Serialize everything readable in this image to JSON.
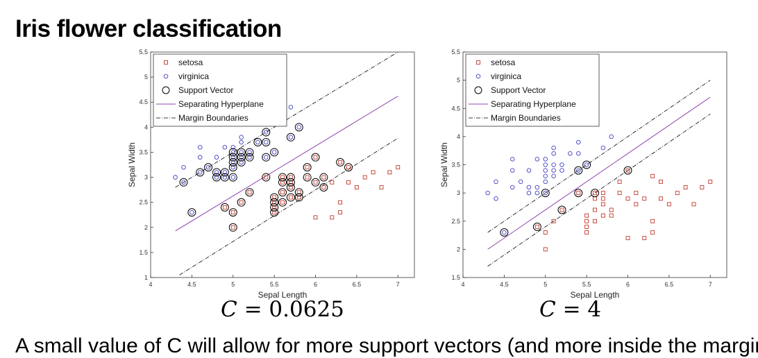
{
  "slide": {
    "title": "Iris flower classification",
    "bottom_text": "A small value of C will allow for more support vectors (and more inside the margin)"
  },
  "colors": {
    "setosa": "#c0392b",
    "virginica": "#3f3fbf",
    "hyperplane": "#8e44ad",
    "margin": "#000000",
    "support": "#000000"
  },
  "chart_data": [
    {
      "type": "scatter",
      "caption": {
        "var": "C",
        "rest": " = 0.0625"
      },
      "xlabel": "Sepal Length",
      "ylabel": "Sepal Width",
      "xlim": [
        4,
        7.2
      ],
      "ylim": [
        1,
        5.5
      ],
      "xticks": [
        4,
        4.5,
        5,
        5.5,
        6,
        6.5,
        7
      ],
      "yticks": [
        1,
        1.5,
        2,
        2.5,
        3,
        3.5,
        4,
        4.5,
        5,
        5.5
      ],
      "legend": [
        "setosa",
        "virginica",
        "Support Vector",
        "Separating Hyperplane",
        "Margin Boundaries"
      ],
      "series": [
        {
          "name": "setosa",
          "points": [
            [
              4.9,
              2.4
            ],
            [
              5,
              2
            ],
            [
              5,
              2.3
            ],
            [
              5.1,
              2.5
            ],
            [
              5.2,
              2.7
            ],
            [
              5.4,
              3
            ],
            [
              5.5,
              2.3
            ],
            [
              5.5,
              2.4
            ],
            [
              5.5,
              2.5
            ],
            [
              5.5,
              2.6
            ],
            [
              5.6,
              2.5
            ],
            [
              5.6,
              2.7
            ],
            [
              5.6,
              2.9
            ],
            [
              5.6,
              3
            ],
            [
              5.7,
              2.6
            ],
            [
              5.7,
              2.8
            ],
            [
              5.7,
              2.9
            ],
            [
              5.7,
              3
            ],
            [
              5.8,
              2.6
            ],
            [
              5.8,
              2.7
            ],
            [
              5.9,
              3
            ],
            [
              5.9,
              3.2
            ],
            [
              6,
              2.2
            ],
            [
              6,
              2.9
            ],
            [
              6,
              3.4
            ],
            [
              6.1,
              2.8
            ],
            [
              6.1,
              3
            ],
            [
              6.2,
              2.2
            ],
            [
              6.2,
              2.9
            ],
            [
              6.3,
              2.3
            ],
            [
              6.3,
              2.5
            ],
            [
              6.3,
              3.3
            ],
            [
              6.4,
              2.9
            ],
            [
              6.4,
              3.2
            ],
            [
              6.5,
              2.8
            ],
            [
              6.6,
              3
            ],
            [
              6.7,
              3.1
            ],
            [
              6.8,
              2.8
            ],
            [
              6.9,
              3.1
            ],
            [
              7,
              3.2
            ]
          ]
        },
        {
          "name": "virginica",
          "points": [
            [
              4.3,
              3
            ],
            [
              4.4,
              2.9
            ],
            [
              4.4,
              3.2
            ],
            [
              4.5,
              2.3
            ],
            [
              4.6,
              3.1
            ],
            [
              4.6,
              3.4
            ],
            [
              4.6,
              3.6
            ],
            [
              4.7,
              3.2
            ],
            [
              4.8,
              3
            ],
            [
              4.8,
              3.1
            ],
            [
              4.8,
              3.4
            ],
            [
              4.9,
              3
            ],
            [
              4.9,
              3.1
            ],
            [
              4.9,
              3.6
            ],
            [
              5,
              3
            ],
            [
              5,
              3.2
            ],
            [
              5,
              3.3
            ],
            [
              5,
              3.4
            ],
            [
              5,
              3.5
            ],
            [
              5,
              3.6
            ],
            [
              5.1,
              3.3
            ],
            [
              5.1,
              3.4
            ],
            [
              5.1,
              3.5
            ],
            [
              5.1,
              3.7
            ],
            [
              5.1,
              3.8
            ],
            [
              5.2,
              3.4
            ],
            [
              5.2,
              3.5
            ],
            [
              5.2,
              4.1
            ],
            [
              5.3,
              3.7
            ],
            [
              5.4,
              3.4
            ],
            [
              5.4,
              3.7
            ],
            [
              5.4,
              3.9
            ],
            [
              5.5,
              3.5
            ],
            [
              5.5,
              4.2
            ],
            [
              5.7,
              3.8
            ],
            [
              5.7,
              4.4
            ],
            [
              5.8,
              4
            ]
          ]
        },
        {
          "name": "Support Vector",
          "points": [
            [
              4.4,
              2.9
            ],
            [
              4.5,
              2.3
            ],
            [
              4.6,
              3.1
            ],
            [
              4.7,
              3.2
            ],
            [
              4.8,
              3
            ],
            [
              4.8,
              3.1
            ],
            [
              4.9,
              2.4
            ],
            [
              4.9,
              3
            ],
            [
              4.9,
              3.1
            ],
            [
              5,
              2
            ],
            [
              5,
              2.3
            ],
            [
              5,
              3
            ],
            [
              5,
              3.2
            ],
            [
              5,
              3.3
            ],
            [
              5,
              3.4
            ],
            [
              5,
              3.5
            ],
            [
              5.1,
              2.5
            ],
            [
              5.1,
              3.3
            ],
            [
              5.1,
              3.4
            ],
            [
              5.1,
              3.5
            ],
            [
              5.2,
              2.7
            ],
            [
              5.2,
              3.4
            ],
            [
              5.2,
              3.5
            ],
            [
              5.3,
              3.7
            ],
            [
              5.4,
              3
            ],
            [
              5.4,
              3.4
            ],
            [
              5.4,
              3.7
            ],
            [
              5.4,
              3.9
            ],
            [
              5.5,
              2.3
            ],
            [
              5.5,
              2.4
            ],
            [
              5.5,
              2.5
            ],
            [
              5.5,
              2.6
            ],
            [
              5.5,
              3.5
            ],
            [
              5.6,
              2.5
            ],
            [
              5.6,
              2.7
            ],
            [
              5.6,
              2.9
            ],
            [
              5.6,
              3
            ],
            [
              5.7,
              2.6
            ],
            [
              5.7,
              2.8
            ],
            [
              5.7,
              2.9
            ],
            [
              5.7,
              3
            ],
            [
              5.7,
              3.8
            ],
            [
              5.8,
              2.6
            ],
            [
              5.8,
              2.7
            ],
            [
              5.8,
              4
            ],
            [
              5.9,
              3
            ],
            [
              5.9,
              3.2
            ],
            [
              6,
              2.9
            ],
            [
              6,
              3.4
            ],
            [
              6.1,
              2.8
            ],
            [
              6.1,
              3
            ],
            [
              6.3,
              3.3
            ],
            [
              6.4,
              3.2
            ]
          ]
        }
      ],
      "hyperplane": [
        [
          4.3,
          1.93
        ],
        [
          7,
          4.62
        ]
      ],
      "margins": [
        [
          [
            4.3,
            2.8
          ],
          [
            7,
            5.5
          ]
        ],
        [
          [
            4.35,
            1.05
          ],
          [
            7,
            3.78
          ]
        ]
      ]
    },
    {
      "type": "scatter",
      "caption": {
        "var": "C",
        "rest": " = 4"
      },
      "xlabel": "Sepal Length",
      "ylabel": "Sepal Width",
      "xlim": [
        4,
        7.2
      ],
      "ylim": [
        1.5,
        5.5
      ],
      "xticks": [
        4,
        4.5,
        5,
        5.5,
        6,
        6.5,
        7
      ],
      "yticks": [
        1.5,
        2,
        2.5,
        3,
        3.5,
        4,
        4.5,
        5,
        5.5
      ],
      "legend": [
        "setosa",
        "virginica",
        "Support Vector",
        "Separating Hyperplane",
        "Margin Boundaries"
      ],
      "series": [
        {
          "name": "setosa",
          "points": [
            [
              4.9,
              2.4
            ],
            [
              5,
              2
            ],
            [
              5,
              2.3
            ],
            [
              5.1,
              2.5
            ],
            [
              5.2,
              2.7
            ],
            [
              5.4,
              3
            ],
            [
              5.5,
              2.3
            ],
            [
              5.5,
              2.4
            ],
            [
              5.5,
              2.5
            ],
            [
              5.5,
              2.6
            ],
            [
              5.6,
              2.5
            ],
            [
              5.6,
              2.7
            ],
            [
              5.6,
              2.9
            ],
            [
              5.6,
              3
            ],
            [
              5.7,
              2.6
            ],
            [
              5.7,
              2.8
            ],
            [
              5.7,
              2.9
            ],
            [
              5.7,
              3
            ],
            [
              5.8,
              2.6
            ],
            [
              5.8,
              2.7
            ],
            [
              5.9,
              3
            ],
            [
              5.9,
              3.2
            ],
            [
              6,
              2.2
            ],
            [
              6,
              2.9
            ],
            [
              6,
              3.4
            ],
            [
              6.1,
              2.8
            ],
            [
              6.1,
              3
            ],
            [
              6.2,
              2.2
            ],
            [
              6.2,
              2.9
            ],
            [
              6.3,
              2.3
            ],
            [
              6.3,
              2.5
            ],
            [
              6.3,
              3.3
            ],
            [
              6.4,
              2.9
            ],
            [
              6.4,
              3.2
            ],
            [
              6.5,
              2.8
            ],
            [
              6.6,
              3
            ],
            [
              6.7,
              3.1
            ],
            [
              6.8,
              2.8
            ],
            [
              6.9,
              3.1
            ],
            [
              7,
              3.2
            ]
          ]
        },
        {
          "name": "virginica",
          "points": [
            [
              4.3,
              3
            ],
            [
              4.4,
              2.9
            ],
            [
              4.4,
              3.2
            ],
            [
              4.5,
              2.3
            ],
            [
              4.6,
              3.1
            ],
            [
              4.6,
              3.4
            ],
            [
              4.6,
              3.6
            ],
            [
              4.7,
              3.2
            ],
            [
              4.8,
              3
            ],
            [
              4.8,
              3.1
            ],
            [
              4.8,
              3.4
            ],
            [
              4.9,
              3
            ],
            [
              4.9,
              3.1
            ],
            [
              4.9,
              3.6
            ],
            [
              5,
              3
            ],
            [
              5,
              3.2
            ],
            [
              5,
              3.3
            ],
            [
              5,
              3.4
            ],
            [
              5,
              3.5
            ],
            [
              5,
              3.6
            ],
            [
              5.1,
              3.3
            ],
            [
              5.1,
              3.4
            ],
            [
              5.1,
              3.5
            ],
            [
              5.1,
              3.7
            ],
            [
              5.1,
              3.8
            ],
            [
              5.2,
              3.4
            ],
            [
              5.2,
              3.5
            ],
            [
              5.3,
              3.7
            ],
            [
              5.4,
              3.4
            ],
            [
              5.4,
              3.7
            ],
            [
              5.4,
              3.9
            ],
            [
              5.5,
              3.5
            ],
            [
              5.7,
              3.8
            ],
            [
              5.8,
              4
            ]
          ]
        },
        {
          "name": "Support Vector",
          "points": [
            [
              4.5,
              2.3
            ],
            [
              4.9,
              2.4
            ],
            [
              5,
              3
            ],
            [
              5.2,
              2.7
            ],
            [
              5.4,
              3
            ],
            [
              5.4,
              3.4
            ],
            [
              5.5,
              3.5
            ],
            [
              5.6,
              3
            ],
            [
              6,
              3.4
            ]
          ]
        }
      ],
      "hyperplane": [
        [
          4.3,
          2
        ],
        [
          7,
          4.7
        ]
      ],
      "margins": [
        [
          [
            4.3,
            2.3
          ],
          [
            7,
            5
          ]
        ],
        [
          [
            4.3,
            1.7
          ],
          [
            7,
            4.4
          ]
        ]
      ]
    }
  ]
}
